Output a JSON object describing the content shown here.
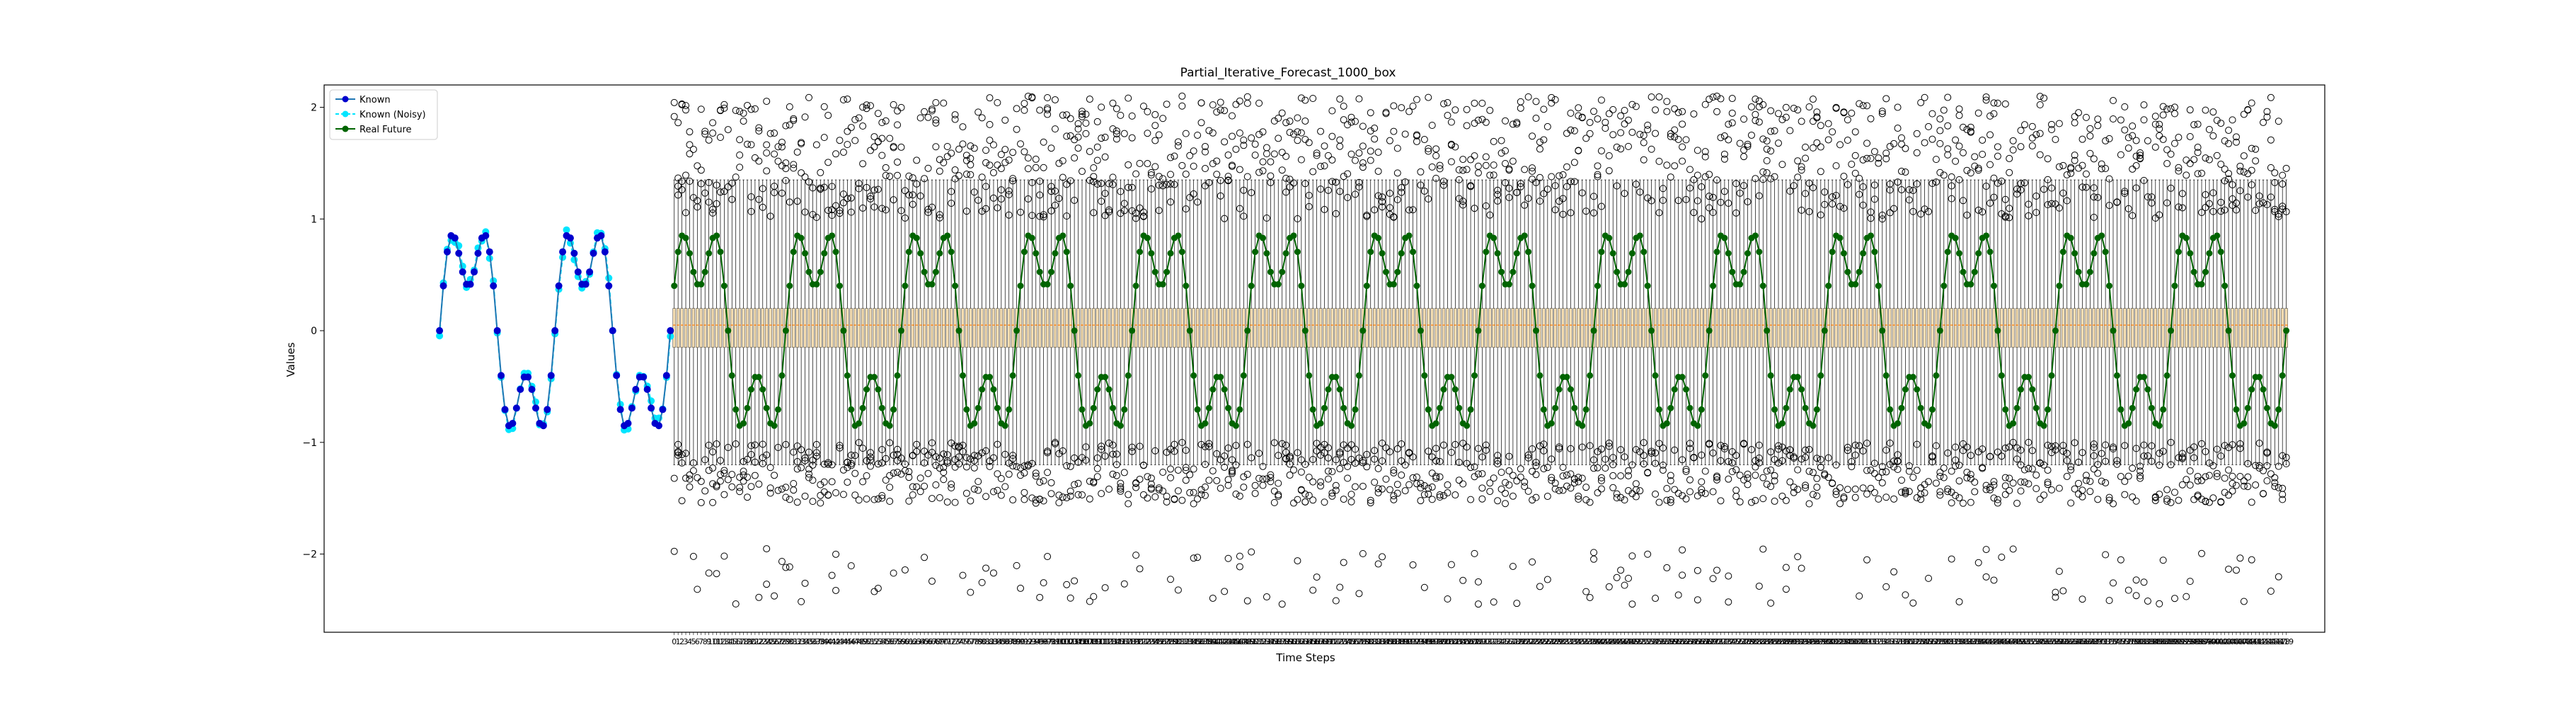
{
  "chart_data": {
    "type": "box",
    "title": "Partial_Iterative_Forecast_1000_box",
    "xlabel": "Time Steps",
    "ylabel": "Values",
    "ylim": [
      -2.7,
      2.2
    ],
    "yticks": [
      -2,
      -1,
      0,
      1,
      2
    ],
    "xlim": [
      -90,
      430
    ],
    "grid": false,
    "legend_position": "top-left",
    "known_range": [
      -60,
      0
    ],
    "forecast_range": [
      1,
      420
    ],
    "series": [
      {
        "name": "Known",
        "color": "#0000cd",
        "marker": "circle",
        "line_color": "#1f77b4"
      },
      {
        "name": "Known (Noisy)",
        "color": "#00e5ff",
        "marker": "circle",
        "line_color": "#00e5ff"
      },
      {
        "name": "Real Future",
        "color": "#006400",
        "marker": "circle",
        "line_color": "#006400"
      }
    ],
    "signal": {
      "description_values": "sum of two sinusoids",
      "amplitude_1": 0.8,
      "period_1": 30,
      "amplitude_2": 0.4,
      "period_2": 10,
      "max": 1.0,
      "min": -1.23
    },
    "box_stats": {
      "median": 0.05,
      "q1": -0.15,
      "q3": 0.2,
      "whisker_low": -1.2,
      "whisker_high": 1.35,
      "outlier_range_high": [
        1.0,
        2.1
      ],
      "outlier_range_low": [
        -2.45,
        -1.0
      ],
      "box_color": "#f5deb3",
      "median_color": "#ff7f0e"
    }
  }
}
